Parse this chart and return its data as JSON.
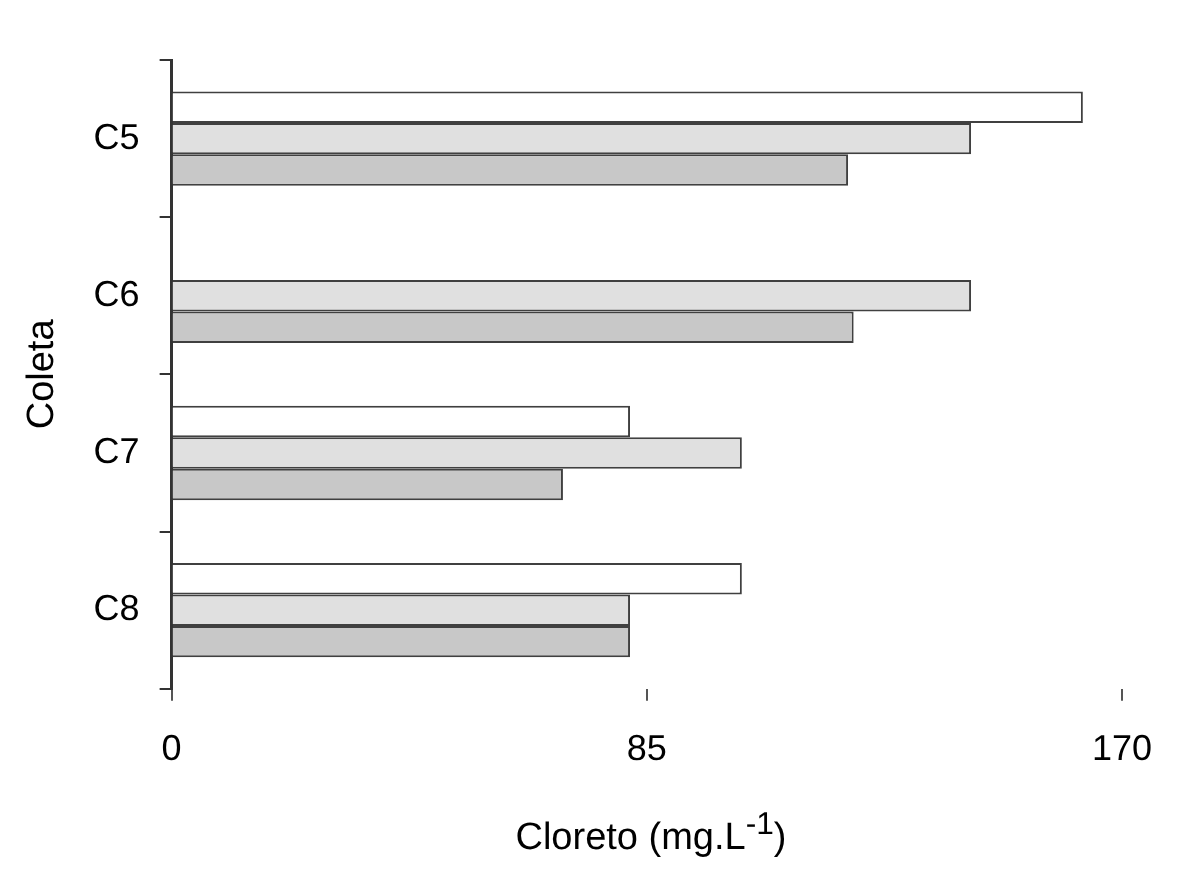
{
  "chart_data": {
    "type": "bar",
    "orientation": "horizontal",
    "xlabel": "Cloreto (mg.L$^{-1}$)",
    "ylabel": "Coleta",
    "categories": [
      "C5",
      "C6",
      "C7",
      "C8"
    ],
    "series": [
      {
        "color": "#ffffff",
        "values": [
          163,
          null,
          82,
          102
        ]
      },
      {
        "color": "#e0e0e0",
        "values": [
          143,
          143,
          102,
          82
        ]
      },
      {
        "color": "#c8c8c8",
        "values": [
          121,
          122,
          70,
          82
        ]
      }
    ],
    "xlim": [
      0,
      170
    ],
    "xticks": [
      0,
      85,
      170
    ],
    "grid": false,
    "legend": false
  }
}
